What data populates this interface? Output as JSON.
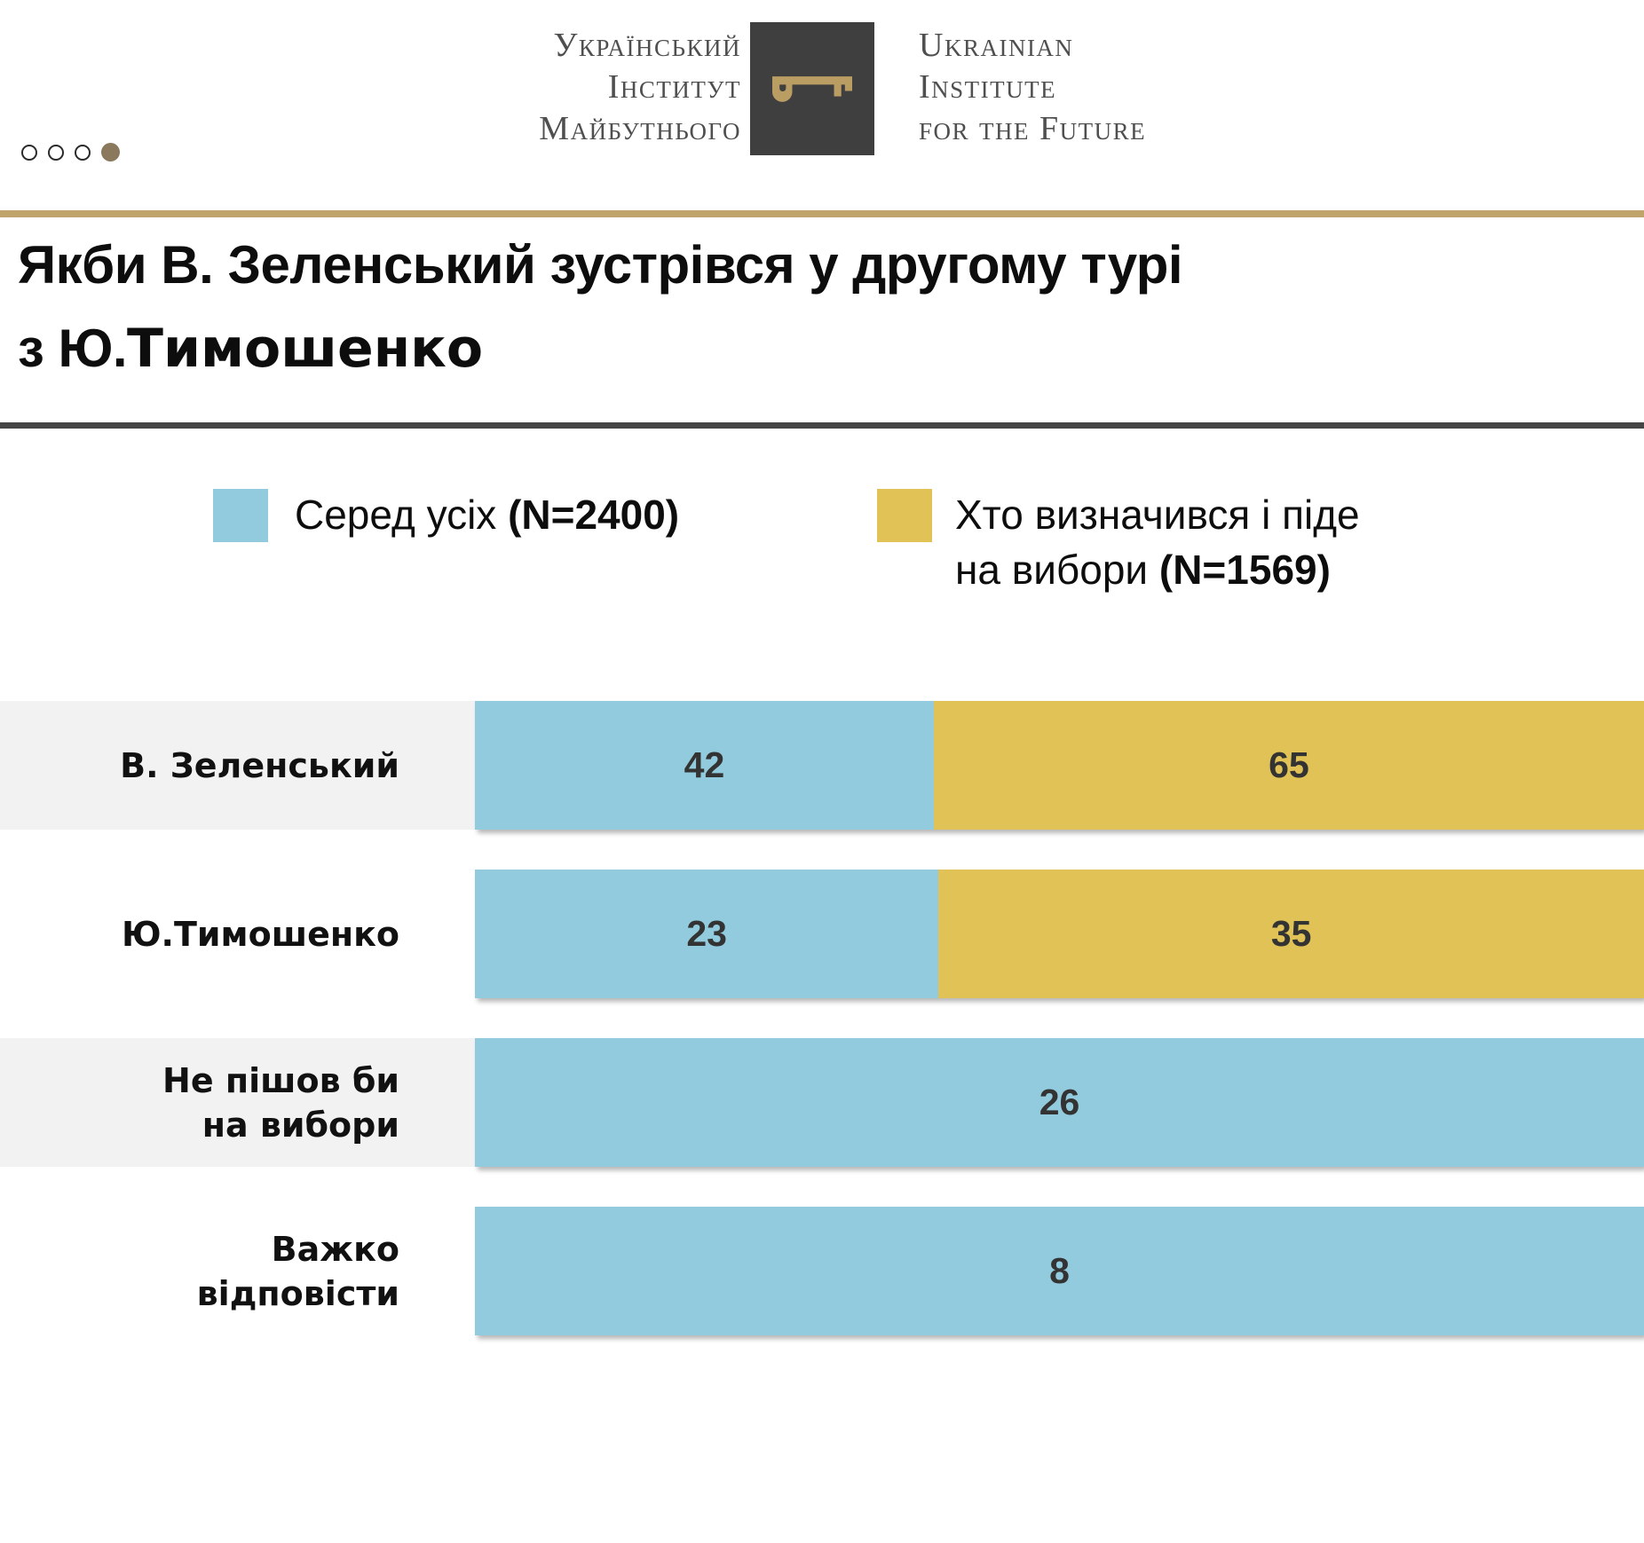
{
  "header": {
    "logo_ua": {
      "line1": "Український",
      "line2": "Інститут",
      "line3": "Майбутнього"
    },
    "logo_en": {
      "line1": "Ukrainian",
      "line2": "Institute",
      "line3": "for the Future"
    }
  },
  "pagination": {
    "total_dots": 4,
    "active_dot": 4
  },
  "title": {
    "line1": "Якби В. Зеленський зустрівся у другому турі",
    "line2_prefix": "з Ю.",
    "line2_emphasis": "Тимошенко"
  },
  "legend": {
    "all": {
      "text": "Серед усіх ",
      "n": "(N=2400)"
    },
    "decided": {
      "text": "Хто визначився і піде\nна вибори ",
      "n": "(N=1569)"
    }
  },
  "colors": {
    "blue": "#92cbdd",
    "gold": "#e0c257",
    "gold_rule": "#bfa36a",
    "dark_rule": "#454545",
    "band": "#f2f2f2",
    "logo_box": "#3f3f3f",
    "logo_key_gold": "#b99d63",
    "active_dot": "#8a795c"
  },
  "chart_data": {
    "type": "bar",
    "orientation": "horizontal",
    "stacked": true,
    "row_scaled_to_full_width": true,
    "title": "Якби В. Зеленський зустрівся у другому турі з Ю.Тимошенко",
    "categories": [
      "В. Зеленський",
      "Ю.Тимошенко",
      "Не пішов би\nна вибори",
      "Важко\nвідповісти"
    ],
    "series": [
      {
        "name": "Серед усіх (N=2400)",
        "color": "#92cbdd",
        "values": [
          42,
          23,
          26,
          8
        ]
      },
      {
        "name": "Хто визначився і піде на вибори (N=1569)",
        "color": "#e0c257",
        "values": [
          65,
          35,
          null,
          null
        ]
      }
    ],
    "data_labels": true,
    "legend_position": "top",
    "banded_rows": [
      0,
      2
    ]
  }
}
